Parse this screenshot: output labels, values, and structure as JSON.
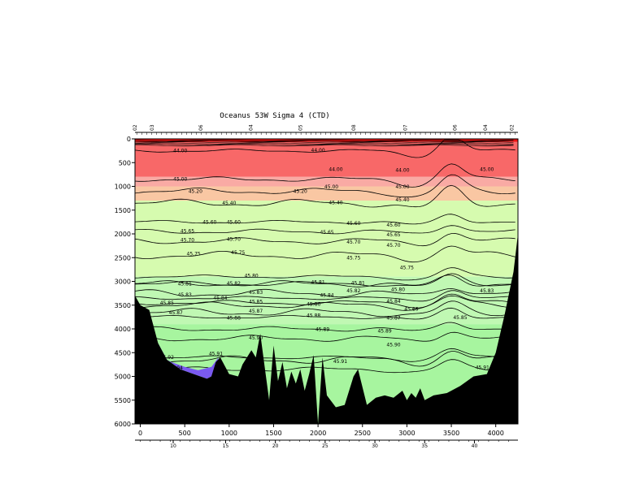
{
  "chart_data": {
    "type": "area",
    "title": "Oceanus 53W Sigma 4 (CTD)",
    "xlabel": "",
    "ylabel": "",
    "xlim": [
      -60,
      4250
    ],
    "ylim": [
      6000,
      0
    ],
    "x_ticks": [
      0,
      500,
      1000,
      1500,
      2000,
      2500,
      3000,
      3500,
      4000
    ],
    "y_ticks": [
      0,
      500,
      1000,
      1500,
      2000,
      2500,
      3000,
      3500,
      4000,
      4500,
      5000,
      5500,
      6000
    ],
    "station_ticks": [
      {
        "label": "10",
        "x": 370
      },
      {
        "label": "15",
        "x": 960
      },
      {
        "label": "20",
        "x": 1520
      },
      {
        "label": "25",
        "x": 2080
      },
      {
        "label": "30",
        "x": 2640
      },
      {
        "label": "35",
        "x": 3200
      },
      {
        "label": "40",
        "x": 3760
      }
    ],
    "top_station_labels": [
      {
        "label": "02",
        "x": -40
      },
      {
        "label": "03",
        "x": 150
      },
      {
        "label": "06",
        "x": 700
      },
      {
        "label": "04",
        "x": 1260
      },
      {
        "label": "05",
        "x": 1820
      },
      {
        "label": "08",
        "x": 2420
      },
      {
        "label": "07",
        "x": 3000
      },
      {
        "label": "06",
        "x": 3560
      },
      {
        "label": "04",
        "x": 3900
      },
      {
        "label": "02",
        "x": 4200
      }
    ],
    "contour_levels": [
      {
        "value": "44.00",
        "depth_mid": 250,
        "labels": [
          {
            "x": 450,
            "y": 250
          },
          {
            "x": 2000,
            "y": 240
          },
          {
            "x": 2200,
            "y": 640
          },
          {
            "x": 2950,
            "y": 660
          }
        ]
      },
      {
        "value": "45.00",
        "depth_mid": 850,
        "labels": [
          {
            "x": 450,
            "y": 850
          },
          {
            "x": 2150,
            "y": 1010
          },
          {
            "x": 2950,
            "y": 1010
          },
          {
            "x": 3900,
            "y": 640
          }
        ]
      },
      {
        "value": "45.20",
        "depth_mid": 1100,
        "labels": [
          {
            "x": 620,
            "y": 1100
          },
          {
            "x": 1800,
            "y": 1100
          }
        ]
      },
      {
        "value": "45.40",
        "depth_mid": 1350,
        "labels": [
          {
            "x": 1000,
            "y": 1350
          },
          {
            "x": 2200,
            "y": 1340
          },
          {
            "x": 2950,
            "y": 1280
          }
        ]
      },
      {
        "value": "45.60",
        "depth_mid": 1750,
        "labels": [
          {
            "x": 780,
            "y": 1750
          },
          {
            "x": 1050,
            "y": 1750
          },
          {
            "x": 2400,
            "y": 1780
          },
          {
            "x": 2850,
            "y": 1810
          }
        ]
      },
      {
        "value": "45.65",
        "depth_mid": 1950,
        "labels": [
          {
            "x": 530,
            "y": 1940
          },
          {
            "x": 2100,
            "y": 1970
          },
          {
            "x": 2850,
            "y": 2020
          }
        ]
      },
      {
        "value": "45.70",
        "depth_mid": 2150,
        "labels": [
          {
            "x": 530,
            "y": 2130
          },
          {
            "x": 1050,
            "y": 2110
          },
          {
            "x": 2400,
            "y": 2170
          },
          {
            "x": 2850,
            "y": 2240
          }
        ]
      },
      {
        "value": "45.75",
        "depth_mid": 2450,
        "labels": [
          {
            "x": 600,
            "y": 2420
          },
          {
            "x": 1100,
            "y": 2390
          },
          {
            "x": 2400,
            "y": 2500
          },
          {
            "x": 3000,
            "y": 2710
          }
        ]
      },
      {
        "value": "45.80",
        "depth_mid": 2900,
        "labels": [
          {
            "x": 1250,
            "y": 2880
          },
          {
            "x": 2900,
            "y": 3170
          }
        ]
      },
      {
        "value": "45.81",
        "depth_mid": 3050,
        "labels": [
          {
            "x": 500,
            "y": 3050
          },
          {
            "x": 2000,
            "y": 3020
          },
          {
            "x": 2450,
            "y": 3030
          }
        ]
      },
      {
        "value": "45.82",
        "depth_mid": 3050,
        "labels": [
          {
            "x": 1050,
            "y": 3040
          },
          {
            "x": 2400,
            "y": 3200
          }
        ]
      },
      {
        "value": "45.83",
        "depth_mid": 3250,
        "labels": [
          {
            "x": 500,
            "y": 3280
          },
          {
            "x": 1300,
            "y": 3230
          },
          {
            "x": 3900,
            "y": 3200
          }
        ]
      },
      {
        "value": "45.84",
        "depth_mid": 3350,
        "labels": [
          {
            "x": 900,
            "y": 3350
          },
          {
            "x": 2100,
            "y": 3290
          },
          {
            "x": 2850,
            "y": 3420
          }
        ]
      },
      {
        "value": "45.85",
        "depth_mid": 3450,
        "labels": [
          {
            "x": 300,
            "y": 3450
          },
          {
            "x": 1300,
            "y": 3430
          },
          {
            "x": 3600,
            "y": 3760
          }
        ]
      },
      {
        "value": "45.86",
        "depth_mid": 3500,
        "labels": [
          {
            "x": 1950,
            "y": 3480
          },
          {
            "x": 3050,
            "y": 3580
          }
        ]
      },
      {
        "value": "45.87",
        "depth_mid": 3650,
        "labels": [
          {
            "x": 400,
            "y": 3660
          },
          {
            "x": 1300,
            "y": 3620
          },
          {
            "x": 2850,
            "y": 3770
          }
        ]
      },
      {
        "value": "45.88",
        "depth_mid": 3750,
        "labels": [
          {
            "x": 1050,
            "y": 3770
          },
          {
            "x": 1950,
            "y": 3720
          }
        ]
      },
      {
        "value": "45.89",
        "depth_mid": 4000,
        "labels": [
          {
            "x": 2050,
            "y": 4010
          },
          {
            "x": 2750,
            "y": 4040
          }
        ]
      },
      {
        "value": "45.90",
        "depth_mid": 4200,
        "labels": [
          {
            "x": 1300,
            "y": 4190
          },
          {
            "x": 2850,
            "y": 4330
          }
        ]
      },
      {
        "value": "45.91",
        "depth_mid": 4650,
        "labels": [
          {
            "x": 850,
            "y": 4520
          },
          {
            "x": 2250,
            "y": 4680
          },
          {
            "x": 3850,
            "y": 4810
          }
        ]
      },
      {
        "value": "45.92",
        "depth_mid": 4600,
        "labels": [
          {
            "x": 300,
            "y": 4600
          }
        ]
      },
      {
        "value": "45.94",
        "depth_mid": 4850,
        "labels": [
          {
            "x": 400,
            "y": 4820
          }
        ]
      }
    ],
    "color_bands": [
      {
        "from": 0,
        "to": 60,
        "color": "#ee1111"
      },
      {
        "from": 60,
        "to": 800,
        "color": "#f86868"
      },
      {
        "from": 800,
        "to": 1000,
        "color": "#f9aaa4"
      },
      {
        "from": 1000,
        "to": 1300,
        "color": "#f9c7a3"
      },
      {
        "from": 1300,
        "to": 2900,
        "color": "#d6fbaf"
      },
      {
        "from": 2900,
        "to": 3900,
        "color": "#c0f8b3"
      },
      {
        "from": 3900,
        "to": 6000,
        "color": "#a7f59f"
      }
    ],
    "purple_color": "#7a5af0",
    "bottom_color": "#000000",
    "bathymetry": [
      [
        -60,
        3300
      ],
      [
        0,
        3500
      ],
      [
        100,
        3600
      ],
      [
        200,
        4300
      ],
      [
        300,
        4650
      ],
      [
        450,
        4850
      ],
      [
        600,
        4950
      ],
      [
        750,
        5050
      ],
      [
        800,
        5000
      ],
      [
        850,
        4700
      ],
      [
        900,
        4600
      ],
      [
        1000,
        4950
      ],
      [
        1100,
        5000
      ],
      [
        1150,
        4750
      ],
      [
        1250,
        4450
      ],
      [
        1300,
        4600
      ],
      [
        1350,
        4100
      ],
      [
        1400,
        4800
      ],
      [
        1450,
        5500
      ],
      [
        1500,
        4350
      ],
      [
        1550,
        5100
      ],
      [
        1600,
        4700
      ],
      [
        1650,
        5250
      ],
      [
        1700,
        4900
      ],
      [
        1750,
        5150
      ],
      [
        1800,
        4850
      ],
      [
        1850,
        5300
      ],
      [
        1900,
        4950
      ],
      [
        1950,
        4550
      ],
      [
        2000,
        6000
      ],
      [
        2050,
        4600
      ],
      [
        2100,
        5400
      ],
      [
        2200,
        5650
      ],
      [
        2300,
        5600
      ],
      [
        2400,
        5000
      ],
      [
        2450,
        4850
      ],
      [
        2550,
        5600
      ],
      [
        2650,
        5450
      ],
      [
        2750,
        5400
      ],
      [
        2850,
        5450
      ],
      [
        2950,
        5300
      ],
      [
        3000,
        5500
      ],
      [
        3050,
        5350
      ],
      [
        3100,
        5450
      ],
      [
        3150,
        5250
      ],
      [
        3200,
        5500
      ],
      [
        3300,
        5400
      ],
      [
        3450,
        5350
      ],
      [
        3600,
        5200
      ],
      [
        3750,
        5000
      ],
      [
        3900,
        4950
      ],
      [
        4000,
        4500
      ],
      [
        4100,
        3700
      ],
      [
        4200,
        2800
      ],
      [
        4250,
        2000
      ]
    ],
    "grid": false,
    "legend": "none"
  }
}
